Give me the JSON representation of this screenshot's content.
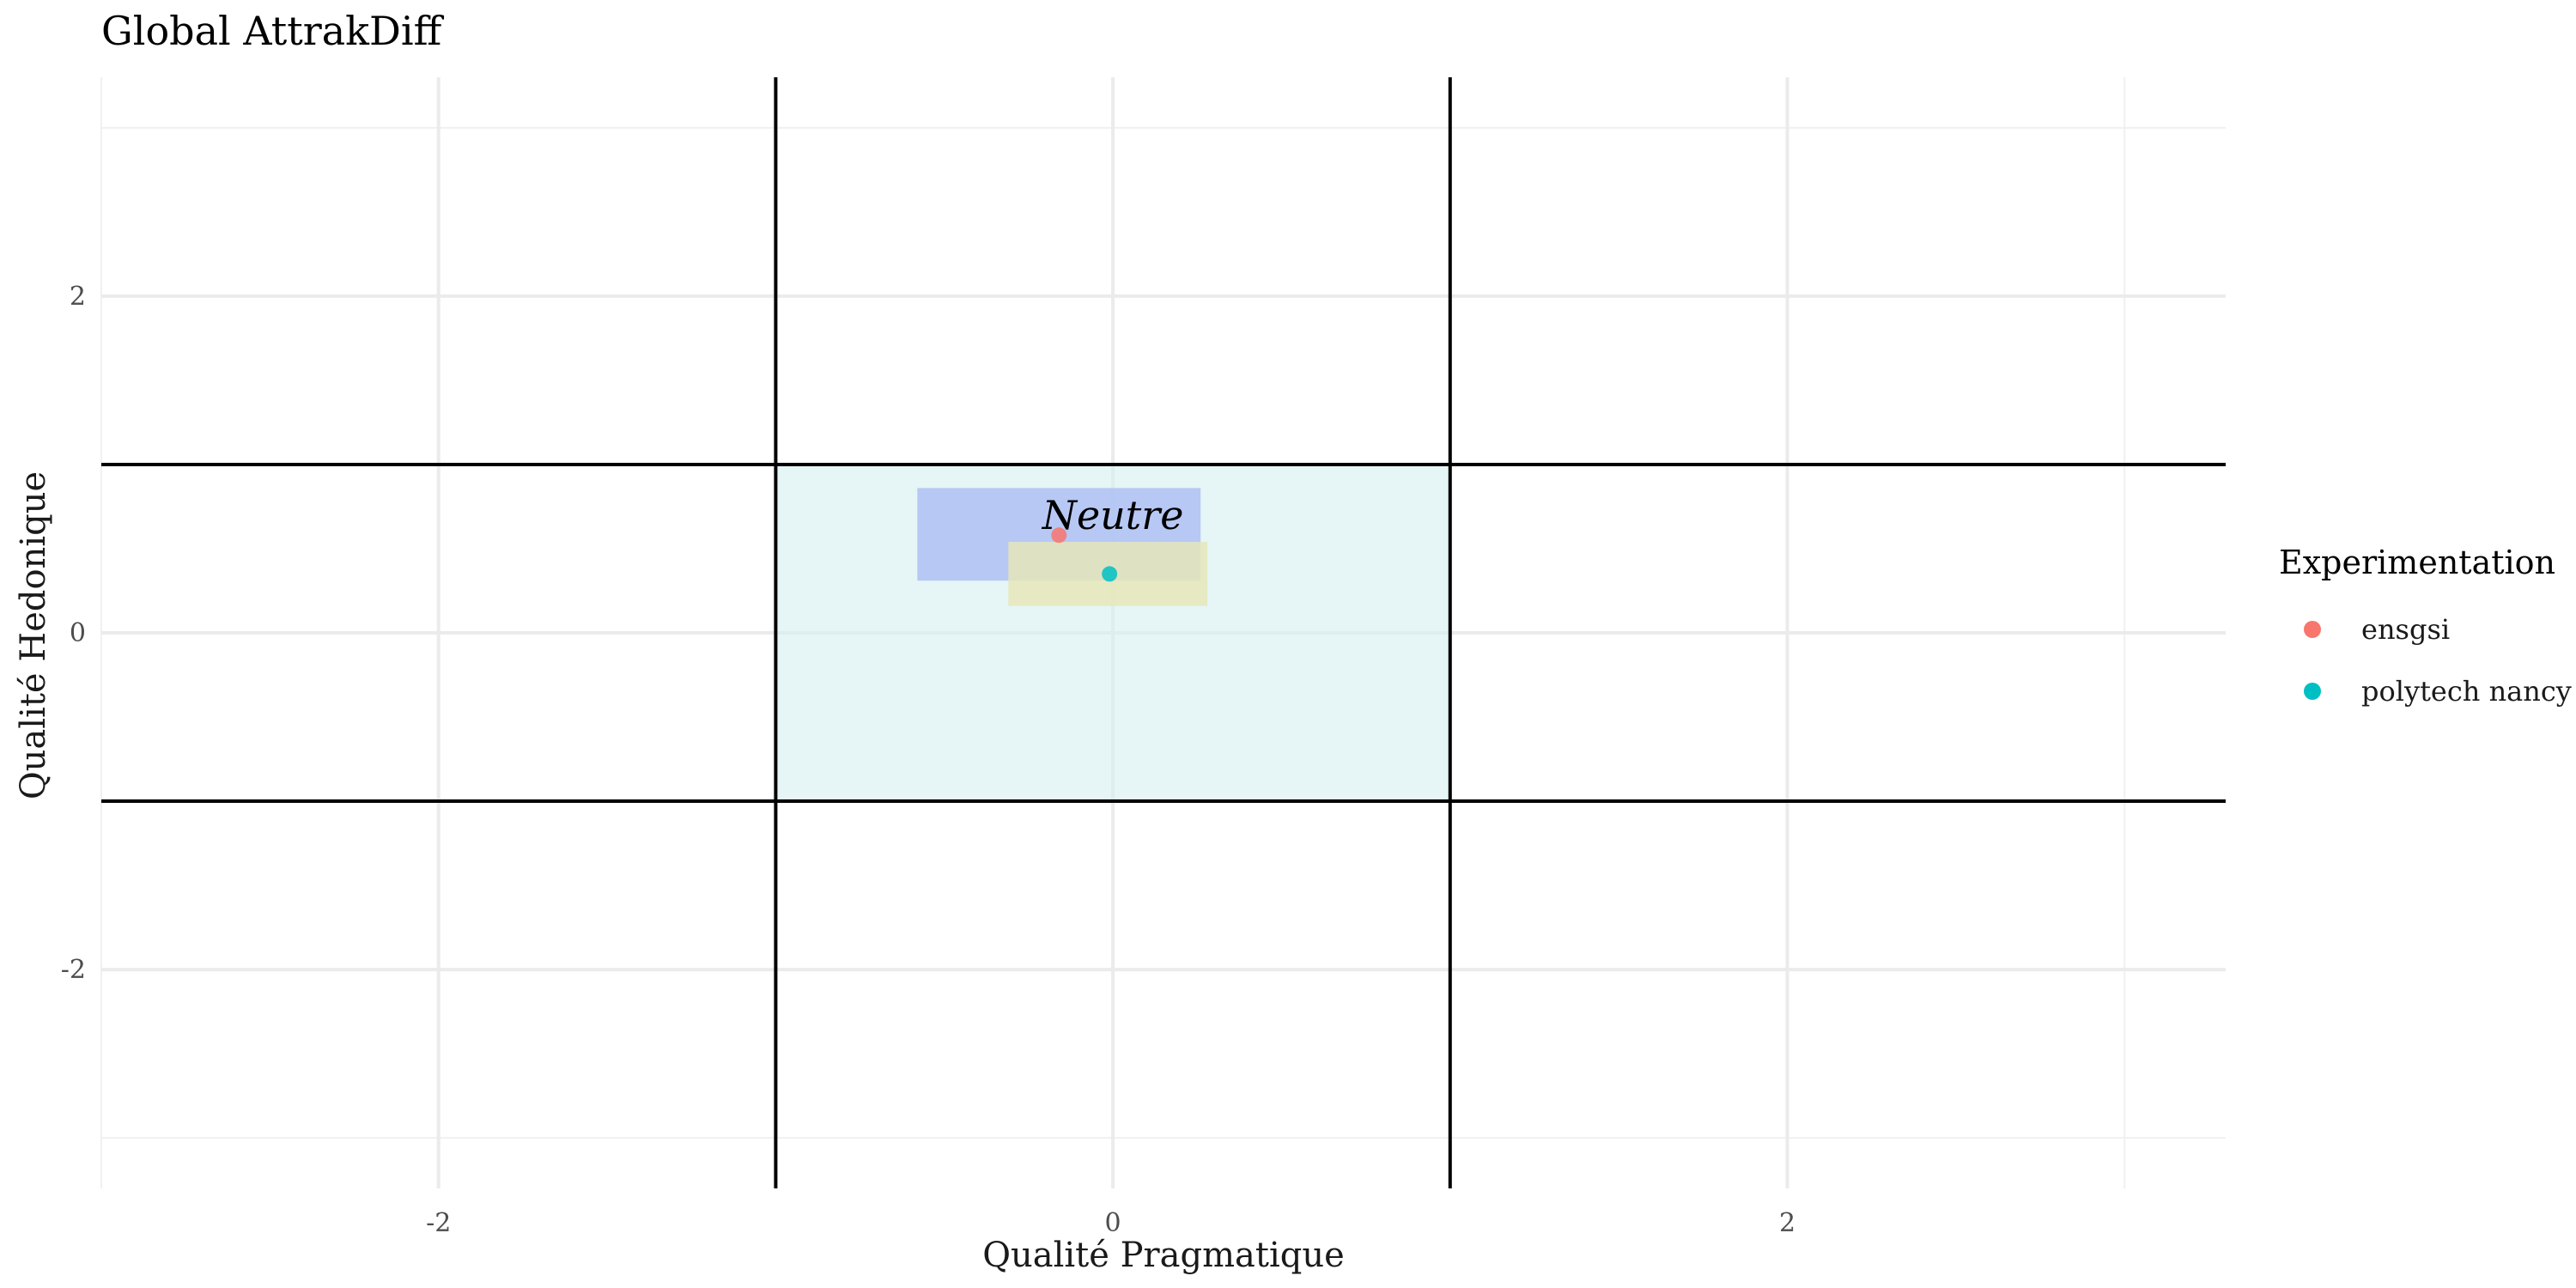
{
  "chart_data": {
    "type": "scatter",
    "title": "Global AttrakDiff",
    "xlabel": "Qualité Pragmatique",
    "ylabel": "Qualité Hedonique",
    "xlim": [
      -3.0,
      3.3
    ],
    "ylim": [
      -3.3,
      3.3
    ],
    "x_ticks": [
      -2,
      0,
      2
    ],
    "y_ticks": [
      -2,
      0,
      2
    ],
    "x_tick_labels": [
      "-2",
      "0",
      "2"
    ],
    "y_tick_labels": [
      "-2",
      "0",
      "2"
    ],
    "grid": true,
    "quadrant_lines": {
      "x": [
        -1,
        1
      ],
      "y": [
        -1,
        1
      ]
    },
    "neutral_zone": {
      "label": "Neutre",
      "x": [
        -1,
        1
      ],
      "y": [
        -1,
        1
      ],
      "color": "#d5efef"
    },
    "legend": {
      "title": "Experimentation",
      "position": "right",
      "entries": [
        {
          "name": "ensgsi",
          "color": "#f8766d"
        },
        {
          "name": "polytech nancy",
          "color": "#00bfc4"
        }
      ]
    },
    "series": [
      {
        "name": "ensgsi",
        "color": "#f8766d",
        "x": -0.16,
        "y": 0.58,
        "x_interval": [
          -0.58,
          0.26
        ],
        "y_interval": [
          0.31,
          0.86
        ],
        "interval_color": "#aebff3"
      },
      {
        "name": "polytech nancy",
        "color": "#00bfc4",
        "x": -0.01,
        "y": 0.35,
        "x_interval": [
          -0.31,
          0.28
        ],
        "y_interval": [
          0.16,
          0.54
        ],
        "interval_color": "#e6e6b8"
      }
    ]
  }
}
